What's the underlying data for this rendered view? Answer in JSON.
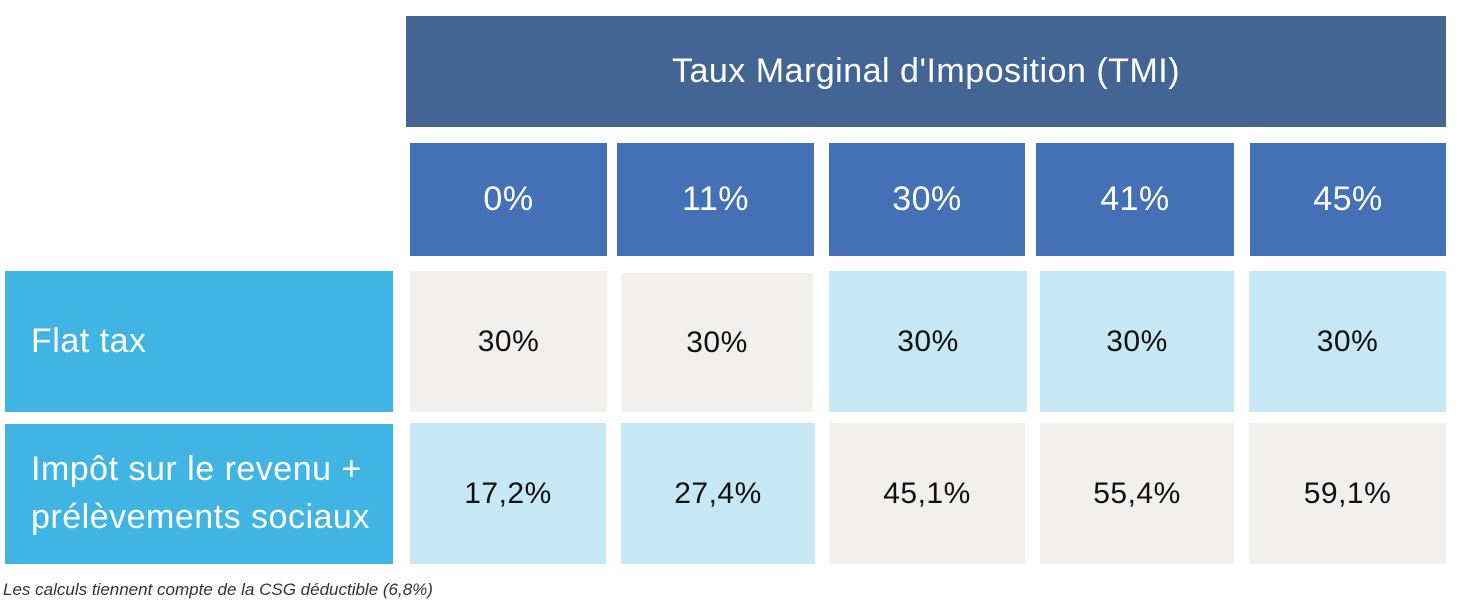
{
  "chart_data": {
    "type": "table",
    "header_title": "Taux Marginal d'Imposition (TMI)",
    "columns": [
      "0%",
      "11%",
      "30%",
      "41%",
      "45%"
    ],
    "rows": [
      {
        "label": "Flat tax",
        "values": [
          "30%",
          "30%",
          "30%",
          "30%",
          "30%"
        ],
        "highlight": [
          false,
          false,
          true,
          true,
          true
        ]
      },
      {
        "label": "Impôt sur le revenu + prélèvements sociaux",
        "values": [
          "17,2%",
          "27,4%",
          "45,1%",
          "55,4%",
          "59,1%"
        ],
        "highlight": [
          true,
          true,
          false,
          false,
          false
        ]
      }
    ],
    "footnote": "Les calculs tiennent compte de la CSG déductible (6,8%)"
  },
  "colors": {
    "header_title_bg": "#426594",
    "column_header_bg": "#4470b5",
    "row_header_bg": "#40b4e3",
    "cell_highlight_bg": "#c5e8f4",
    "cell_plain_bg": "#f2f0ee"
  }
}
